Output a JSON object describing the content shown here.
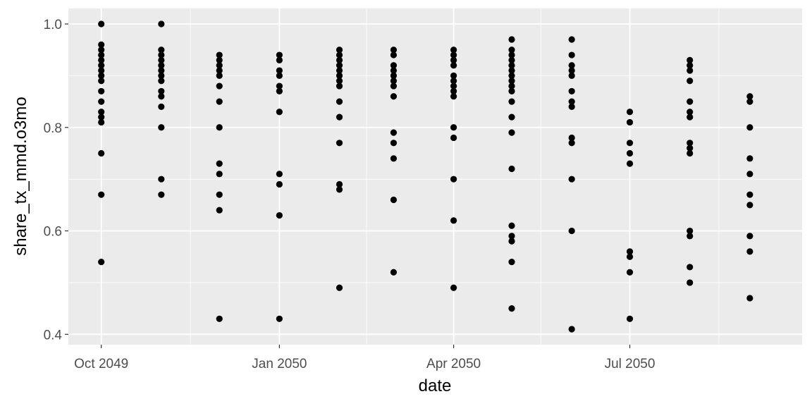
{
  "chart_data": {
    "type": "scatter",
    "title": "",
    "xlabel": "date",
    "ylabel": "share_tx_mmd.o3mo",
    "xlim": [
      "2049-09-14",
      "2050-09-28"
    ],
    "ylim": [
      0.38,
      1.03
    ],
    "x_ticks": [
      {
        "date": "2049-10-01",
        "label": "Oct 2049"
      },
      {
        "date": "2050-01-01",
        "label": "Jan 2050"
      },
      {
        "date": "2050-04-01",
        "label": "Apr 2050"
      },
      {
        "date": "2050-07-01",
        "label": "Jul 2050"
      }
    ],
    "x_minor_ticks": [
      "2049-11-16",
      "2050-02-15",
      "2050-05-16",
      "2050-08-16"
    ],
    "y_ticks": [
      {
        "value": 0.4,
        "label": "0.4"
      },
      {
        "value": 0.6,
        "label": "0.6"
      },
      {
        "value": 0.8,
        "label": "0.8"
      },
      {
        "value": 1.0,
        "label": "1.0"
      }
    ],
    "y_minor_ticks": [
      0.5,
      0.7,
      0.9
    ],
    "grid": true,
    "point_color": "#000000",
    "panel_color": "#ebebeb",
    "grid_color": "#ffffff",
    "groups": [
      {
        "x": "2049-10-01",
        "y": [
          1.0,
          0.96,
          0.95,
          0.94,
          0.93,
          0.92,
          0.91,
          0.9,
          0.89,
          0.87,
          0.85,
          0.83,
          0.82,
          0.81,
          0.75,
          0.67,
          0.54
        ]
      },
      {
        "x": "2049-11-01",
        "y": [
          1.0,
          0.95,
          0.94,
          0.93,
          0.92,
          0.91,
          0.9,
          0.89,
          0.87,
          0.86,
          0.84,
          0.8,
          0.7,
          0.67
        ]
      },
      {
        "x": "2049-12-01",
        "y": [
          0.94,
          0.93,
          0.92,
          0.91,
          0.9,
          0.88,
          0.85,
          0.8,
          0.73,
          0.71,
          0.67,
          0.64,
          0.43
        ]
      },
      {
        "x": "2050-01-01",
        "y": [
          0.94,
          0.93,
          0.91,
          0.9,
          0.88,
          0.87,
          0.83,
          0.71,
          0.69,
          0.63,
          0.43
        ]
      },
      {
        "x": "2050-02-01",
        "y": [
          0.95,
          0.94,
          0.93,
          0.92,
          0.91,
          0.9,
          0.89,
          0.88,
          0.85,
          0.82,
          0.77,
          0.69,
          0.68,
          0.49
        ]
      },
      {
        "x": "2050-03-01",
        "y": [
          0.95,
          0.94,
          0.92,
          0.91,
          0.9,
          0.89,
          0.88,
          0.86,
          0.79,
          0.77,
          0.74,
          0.66,
          0.52
        ]
      },
      {
        "x": "2050-04-01",
        "y": [
          0.95,
          0.94,
          0.93,
          0.92,
          0.9,
          0.89,
          0.88,
          0.87,
          0.86,
          0.8,
          0.78,
          0.7,
          0.62,
          0.49
        ]
      },
      {
        "x": "2050-05-01",
        "y": [
          0.97,
          0.95,
          0.94,
          0.93,
          0.92,
          0.91,
          0.9,
          0.89,
          0.88,
          0.87,
          0.85,
          0.82,
          0.79,
          0.72,
          0.61,
          0.59,
          0.58,
          0.54,
          0.45
        ]
      },
      {
        "x": "2050-06-01",
        "y": [
          0.97,
          0.94,
          0.92,
          0.91,
          0.9,
          0.87,
          0.85,
          0.84,
          0.78,
          0.77,
          0.7,
          0.6,
          0.41
        ]
      },
      {
        "x": "2050-07-01",
        "y": [
          0.83,
          0.81,
          0.77,
          0.75,
          0.73,
          0.56,
          0.55,
          0.52,
          0.43
        ]
      },
      {
        "x": "2050-08-01",
        "y": [
          0.93,
          0.92,
          0.91,
          0.89,
          0.85,
          0.83,
          0.82,
          0.77,
          0.76,
          0.75,
          0.6,
          0.59,
          0.53,
          0.5
        ]
      },
      {
        "x": "2050-09-01",
        "y": [
          0.86,
          0.85,
          0.8,
          0.74,
          0.71,
          0.67,
          0.65,
          0.59,
          0.56,
          0.47
        ]
      }
    ]
  }
}
